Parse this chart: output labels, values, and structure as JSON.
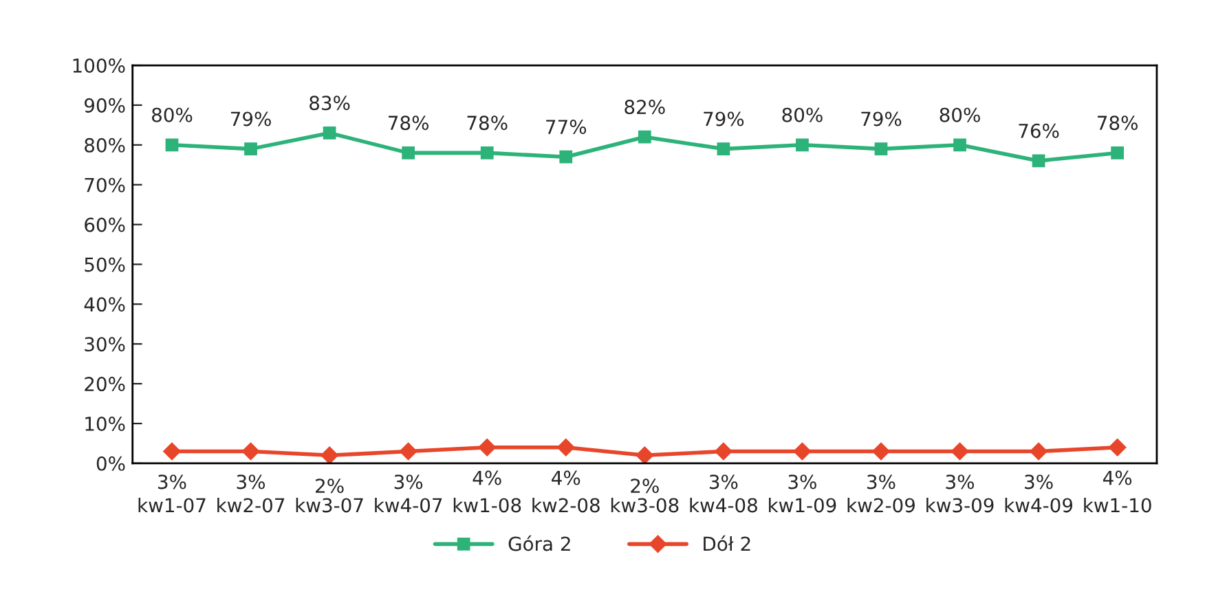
{
  "chart_data": {
    "type": "line",
    "categories": [
      "kw1-07",
      "kw2-07",
      "kw3-07",
      "kw4-07",
      "kw1-08",
      "kw2-08",
      "kw3-08",
      "kw4-08",
      "kw1-09",
      "kw2-09",
      "kw3-09",
      "kw4-09",
      "kw1-10"
    ],
    "series": [
      {
        "name": "Góra 2",
        "color": "#2db37a",
        "marker": "square",
        "values": [
          80,
          79,
          83,
          78,
          78,
          77,
          82,
          79,
          80,
          79,
          80,
          76,
          78
        ],
        "value_labels": [
          "80%",
          "79%",
          "83%",
          "78%",
          "78%",
          "77%",
          "82%",
          "79%",
          "80%",
          "79%",
          "80%",
          "76%",
          "78%"
        ]
      },
      {
        "name": "Dół 2",
        "color": "#e8462a",
        "marker": "diamond",
        "values": [
          3,
          3,
          2,
          3,
          4,
          4,
          2,
          3,
          3,
          3,
          3,
          3,
          4
        ],
        "value_labels": [
          "3%",
          "3%",
          "2%",
          "3%",
          "4%",
          "4%",
          "2%",
          "3%",
          "3%",
          "3%",
          "3%",
          "3%",
          "4%"
        ]
      }
    ],
    "ylim": [
      0,
      100
    ],
    "yticks": [
      {
        "value": 0,
        "label": "0%"
      },
      {
        "value": 10,
        "label": "10%"
      },
      {
        "value": 20,
        "label": "20%"
      },
      {
        "value": 30,
        "label": "30%"
      },
      {
        "value": 40,
        "label": "40%"
      },
      {
        "value": 50,
        "label": "50%"
      },
      {
        "value": 60,
        "label": "60%"
      },
      {
        "value": 70,
        "label": "70%"
      },
      {
        "value": 80,
        "label": "80%"
      },
      {
        "value": 90,
        "label": "90%"
      },
      {
        "value": 100,
        "label": "100%"
      }
    ],
    "grid": false,
    "legend": "bottom",
    "line_style": "solid"
  }
}
